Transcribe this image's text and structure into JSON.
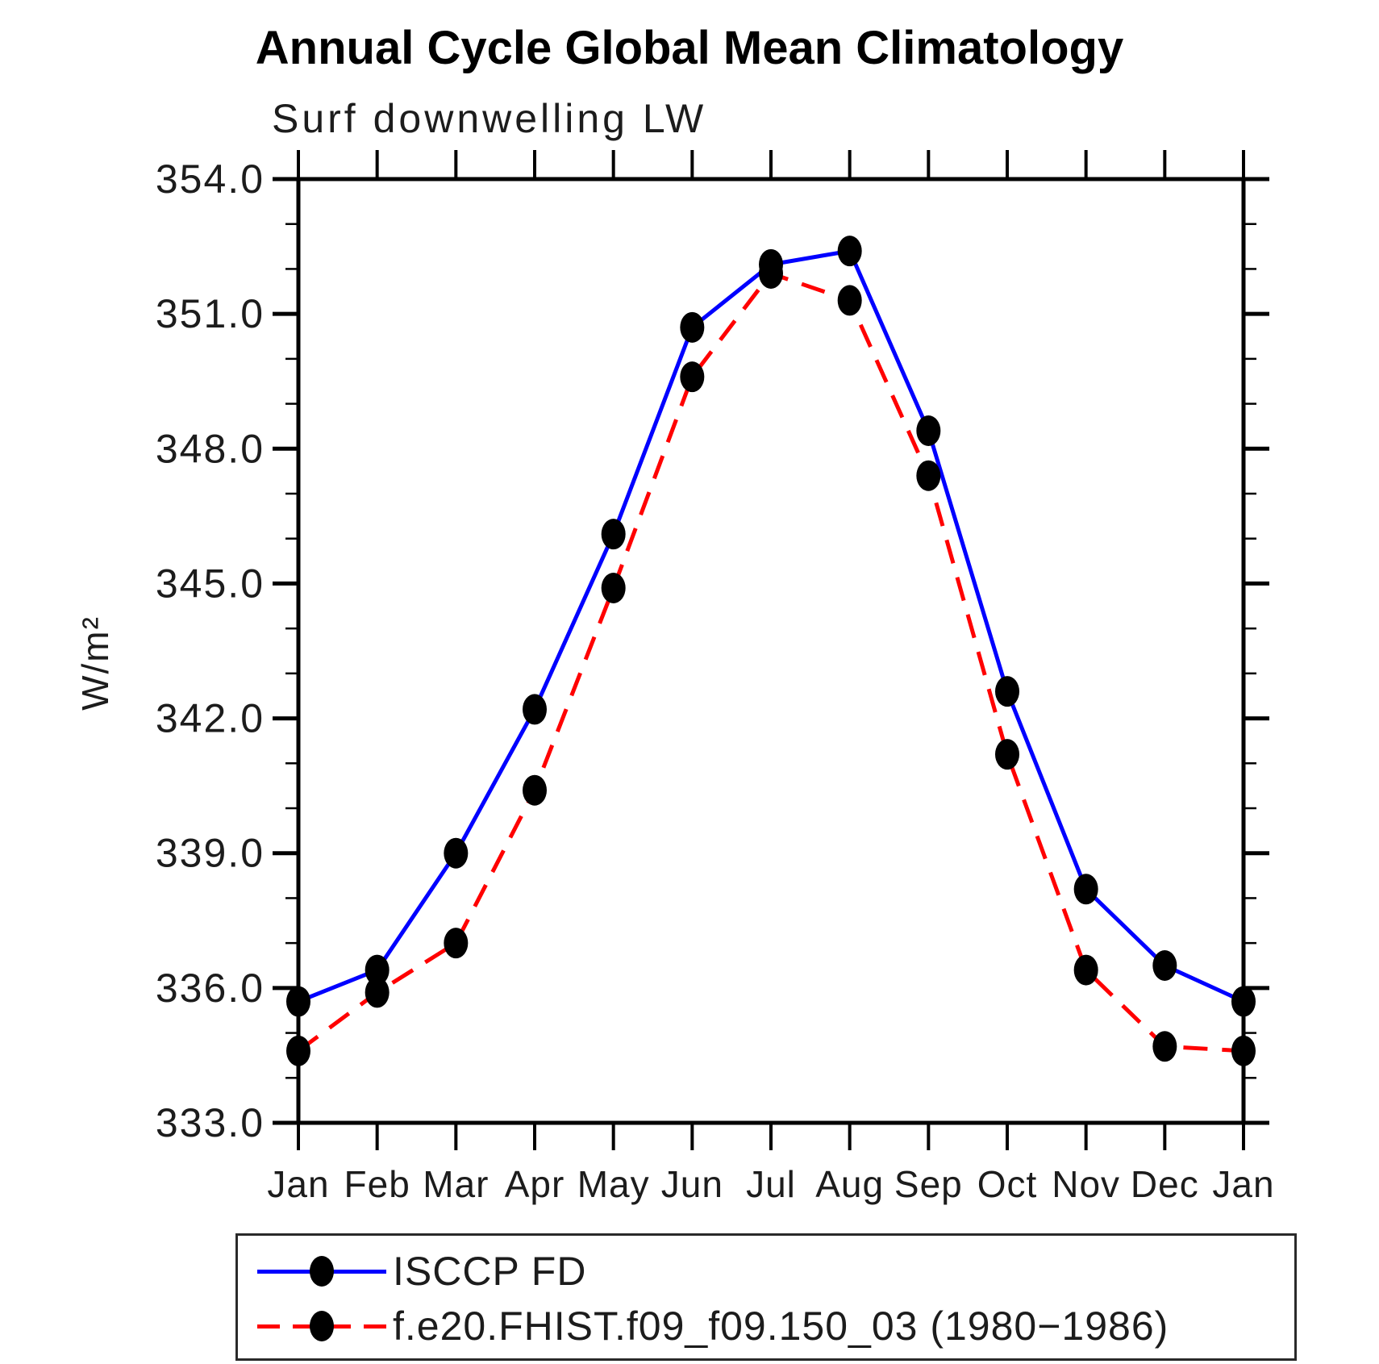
{
  "title": "Annual Cycle Global Mean Climatology",
  "chart_data": {
    "type": "line",
    "subtitle": "Surf downwelling LW",
    "ylabel": "W/m²",
    "x_categories": [
      "Jan",
      "Feb",
      "Mar",
      "Apr",
      "May",
      "Jun",
      "Jul",
      "Aug",
      "Sep",
      "Oct",
      "Nov",
      "Dec",
      "Jan"
    ],
    "ylim": [
      333.0,
      354.0
    ],
    "ytick_major_step": 3.0,
    "ytick_minor_step": 1.0,
    "ytick_labels": [
      "333.0",
      "336.0",
      "339.0",
      "342.0",
      "345.0",
      "348.0",
      "351.0",
      "354.0"
    ],
    "grid": false,
    "legend_position": "bottom-left-box",
    "series": [
      {
        "name": "ISCCP FD",
        "color": "#0000ff",
        "style": "solid",
        "marker": "black-dot",
        "values": [
          335.7,
          336.4,
          339.0,
          342.2,
          346.1,
          350.7,
          352.1,
          352.4,
          348.4,
          342.6,
          338.2,
          336.5,
          335.7
        ]
      },
      {
        "name": "f.e20.FHIST.f09_f09.150_03 (1980−1986)",
        "color": "#ff0000",
        "style": "dashed",
        "marker": "black-dot",
        "values": [
          334.6,
          335.9,
          337.0,
          340.4,
          344.9,
          349.6,
          351.9,
          351.3,
          347.4,
          341.2,
          336.4,
          334.7,
          334.6
        ]
      }
    ]
  }
}
